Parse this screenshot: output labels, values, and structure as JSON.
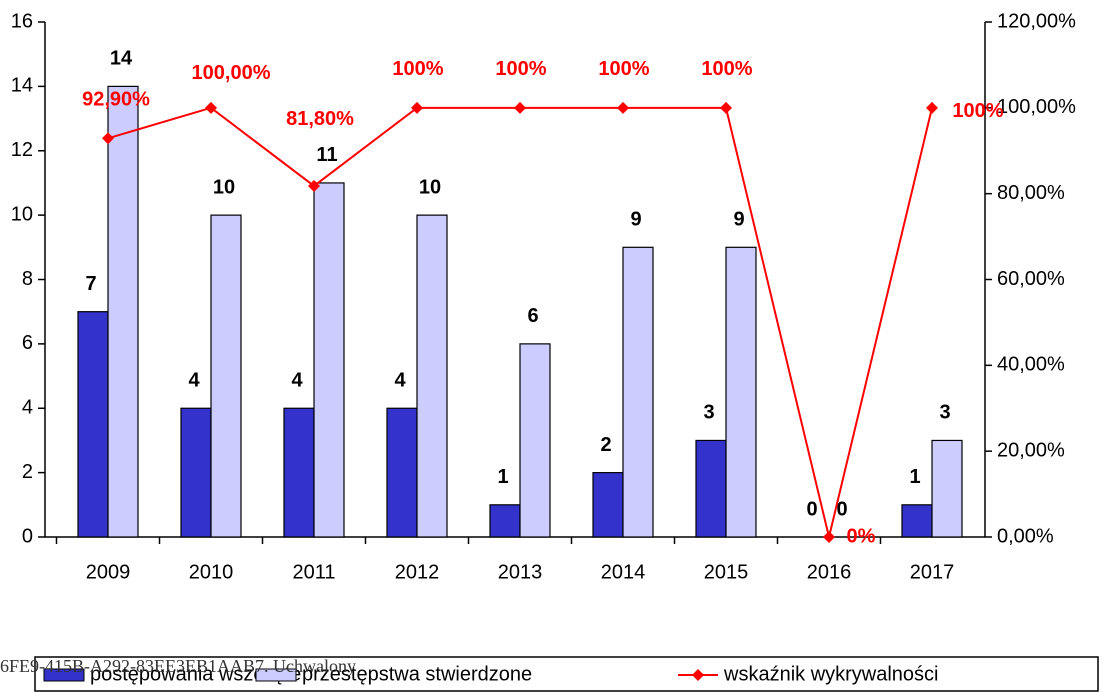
{
  "chart_data": {
    "type": "bar_line",
    "categories": [
      "2009",
      "2010",
      "2011",
      "2012",
      "2013",
      "2014",
      "2015",
      "2016",
      "2017"
    ],
    "series": [
      {
        "name": "postępowania wszczęte",
        "color": "#3333cc",
        "values": [
          7,
          4,
          4,
          4,
          1,
          2,
          3,
          0,
          1
        ]
      },
      {
        "name": "przestępstwa stwierdzone",
        "color": "#ccccff",
        "values": [
          14,
          10,
          11,
          10,
          6,
          9,
          9,
          0,
          3
        ]
      },
      {
        "name": "wskaźnik wykrywalności",
        "color": "#ff0000",
        "axis": "y2",
        "type": "line",
        "values": [
          92.9,
          100,
          81.8,
          100,
          100,
          100,
          100,
          0,
          100
        ],
        "value_labels": [
          "92,90%",
          "100,00%",
          "81,80%",
          "100%",
          "100%",
          "100%",
          "100%",
          "0%",
          "100%"
        ]
      }
    ],
    "ylim": [
      0,
      16
    ],
    "yticks": [
      0,
      2,
      4,
      6,
      8,
      10,
      12,
      14,
      16
    ],
    "y2lim": [
      0,
      120
    ],
    "y2ticks": [
      {
        "value": 0,
        "label": "0,00%"
      },
      {
        "value": 20,
        "label": "20,00%"
      },
      {
        "value": 40,
        "label": "40,00%"
      },
      {
        "value": 60,
        "label": "60,00%"
      },
      {
        "value": 80,
        "label": "80,00%"
      },
      {
        "value": 100,
        "label": "100,00%"
      },
      {
        "value": 120,
        "label": "120,00%"
      }
    ],
    "legend": "bottom",
    "footer_text": "6FE9-415B-A292-83EE3EB1AAB7. Uchwalony"
  }
}
